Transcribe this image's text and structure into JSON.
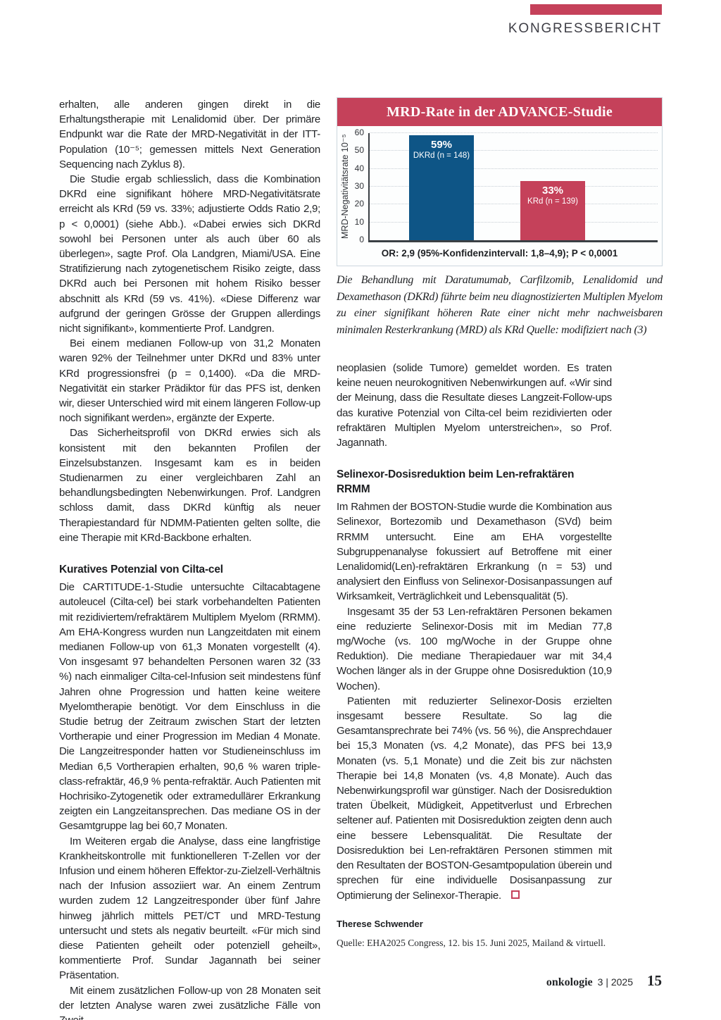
{
  "page": {
    "kicker": "KONGRESSBERICHT",
    "accent_color": "#c5415a",
    "footer": {
      "journal": "onkologie",
      "issue": "3 | 2025",
      "page_number": "15"
    }
  },
  "article": {
    "left": {
      "p1": "erhalten, alle anderen gingen direkt in die Erhaltungstherapie mit Lenalidomid über. Der primäre Endpunkt war die Rate der MRD-Negativität in der ITT-Population (10⁻⁵; gemessen mittels Next Generation Sequencing nach Zyklus 8).",
      "p2": "Die Studie ergab schliesslich, dass die Kombination DKRd eine signifikant höhere MRD-Negativitätsrate erreicht als KRd (59 vs. 33%; adjustierte Odds Ratio 2,9; p < 0,0001) (siehe Abb.). «Dabei erwies sich DKRd sowohl bei Personen unter als auch über 60 als überlegen», sagte Prof. Ola Landgren, Miami/USA. Eine Stratifizierung nach zytogenetischem Risiko zeigte, dass DKRd auch bei Personen mit hohem Risiko besser abschnitt als KRd (59 vs. 41%). «Diese Differenz war aufgrund der geringen Grösse der Gruppen allerdings nicht signifikant», kommentierte Prof. Landgren.",
      "p3": "Bei einem medianen Follow-up von 31,2 Monaten waren 92% der Teilnehmer unter DKRd und 83% unter KRd progressionsfrei (p = 0,1400). «Da die MRD-Negativität ein starker Prädiktor für das PFS ist, denken wir, dieser Unterschied wird mit einem längeren Follow-up noch signifikant werden», ergänzte der Experte.",
      "p4": "Das Sicherheitsprofil von DKRd erwies sich als konsistent mit den bekannten Profilen der Einzelsubstanzen. Insgesamt kam es in beiden Studienarmen zu einer vergleichbaren Zahl an behandlungsbedingten Nebenwirkungen. Prof. Landgren schloss damit, dass DKRd künftig als neuer Therapiestandard für NDMM-Patienten gelten sollte, die eine Therapie mit KRd-Backbone erhalten.",
      "h1": "Kuratives Potenzial von Cilta-cel",
      "p5": "Die CARTITUDE-1-Studie untersuchte Ciltacabtagene autoleucel (Cilta-cel) bei stark vorbehandelten Patienten mit rezidiviertem/refraktärem Multiplem Myelom (RRMM). Am EHA-Kongress wurden nun Langzeitdaten mit einem medianen Follow-up von 61,3 Monaten vorgestellt (4). Von insgesamt 97 behandelten Personen waren 32 (33 %) nach einmaliger Cilta-cel-Infusion seit mindestens fünf Jahren ohne Progression und hatten keine weitere Myelomtherapie benötigt. Vor dem Einschluss in die Studie betrug der Zeitraum zwischen Start der letzten Vortherapie und einer Progression im Median 4 Monate. Die Langzeitresponder hatten vor Studieneinschluss im Median 6,5 Vortherapien erhalten, 90,6 % waren triple-class-refraktär, 46,9 % penta-refraktär. Auch Patienten mit Hochrisiko-Zytogenetik oder extramedullärer Erkrankung zeigten ein Langzeitansprechen. Das mediane OS in der Gesamtgruppe lag bei 60,7 Monaten.",
      "p6": "Im Weiteren ergab die Analyse, dass eine langfristige Krankheitskontrolle mit funktionelleren T-Zellen vor der Infusion und einem höheren Effektor-zu-Zielzell-Verhältnis nach der Infusion assoziiert war. An einem Zentrum wurden zudem 12 Langzeitresponder über fünf Jahre hinweg jährlich mittels PET/CT und MRD-Testung untersucht und stets als negativ beurteilt. «Für mich sind diese Patienten geheilt oder potenziell geheilt», kommentierte Prof. Sundar Jagannath bei seiner Präsentation.",
      "p7": "Mit einem zusätzlichen Follow-up von 28 Monaten seit der letzten Analyse waren zwei zusätzliche Fälle von Zweit-"
    },
    "right": {
      "p1": "neoplasien (solide Tumore) gemeldet worden. Es traten keine neuen neurokognitiven Nebenwirkungen auf. «Wir sind der Meinung, dass die Resultate dieses Langzeit-Follow-ups das kurative Potenzial von Cilta-cel beim rezidivierten oder refraktären Multiplen Myelom unterstreichen», so Prof. Jagannath.",
      "h2": "Selinexor-Dosisreduktion beim Len-refraktären RRMM",
      "p2": "Im Rahmen der BOSTON-Studie wurde die Kombination aus Selinexor, Bortezomib und Dexamethason (SVd) beim RRMM untersucht. Eine am EHA vorgestellte Subgruppenanalyse fokussiert auf Betroffene mit einer Lenalidomid(Len)-refraktären Erkrankung (n = 53) und analysiert den Einfluss von Selinexor-Dosisanpassungen auf Wirksamkeit, Verträglichkeit und Lebensqualität (5).",
      "p3": "Insgesamt 35 der 53 Len-refraktären Personen bekamen eine reduzierte Selinexor-Dosis mit im Median 77,8 mg/Woche (vs. 100 mg/Woche in der Gruppe ohne Reduktion). Die mediane Therapiedauer war mit 34,4 Wochen länger als in der Gruppe ohne Dosisreduktion (10,9 Wochen).",
      "p4": "Patienten mit reduzierter Selinexor-Dosis erzielten insgesamt bessere Resultate. So lag die Gesamtansprechrate bei 74% (vs. 56 %), die Ansprechdauer bei 15,3 Monaten (vs. 4,2 Monate), das PFS bei 13,9 Monaten (vs. 5,1 Monate) und die Zeit bis zur nächsten Therapie bei 14,8 Monaten (vs. 4,8 Monate). Auch das Nebenwirkungsprofil war günstiger. Nach der Dosisreduktion traten Übelkeit, Müdigkeit, Appetitverlust und Erbrechen seltener auf. Patienten mit Dosisreduktion zeigten denn auch eine bessere Lebensqualität. Die Resultate der Dosisreduktion bei Len-refraktären Personen stimmen mit den Resultaten der BOSTON-Gesamtpopulation überein und sprechen für eine individuelle Dosisanpassung zur Optimierung der Selinexor-Therapie.",
      "author": "Therese Schwender",
      "source": "Quelle: EHA2025 Congress, 12. bis 15. Juni 2025, Mailand & virtuell."
    }
  },
  "chart_data": {
    "type": "bar",
    "title": "MRD-Rate in der ADVANCE-Studie",
    "ylabel": "MRD-Negativitätsrate 10⁻⁵",
    "ylim": [
      0,
      60
    ],
    "yticks": [
      0,
      10,
      20,
      30,
      40,
      50,
      60
    ],
    "categories": [
      "DKRd (n = 148)",
      "KRd (n = 139)"
    ],
    "values": [
      59,
      33
    ],
    "value_labels": [
      "59%",
      "33%"
    ],
    "bar_colors": [
      "#0e5586",
      "#c5415a"
    ],
    "grid": "horizontal dotted",
    "legend_position": "none",
    "footnote": "OR: 2,9 (95%-Konfidenzintervall: 1,8–4,9); P < 0,0001",
    "caption": "Die Behandlung mit Daratumumab, Carfilzomib, Lenalidomid und Dexamethason (DKRd) führte beim neu diagnostizierten Multiplen Myelom zu einer signifikant höheren Rate einer nicht mehr nachweisbaren minimalen Resterkrankung (MRD) als KRd",
    "caption_source": "Quelle: modifiziert nach (3)"
  }
}
